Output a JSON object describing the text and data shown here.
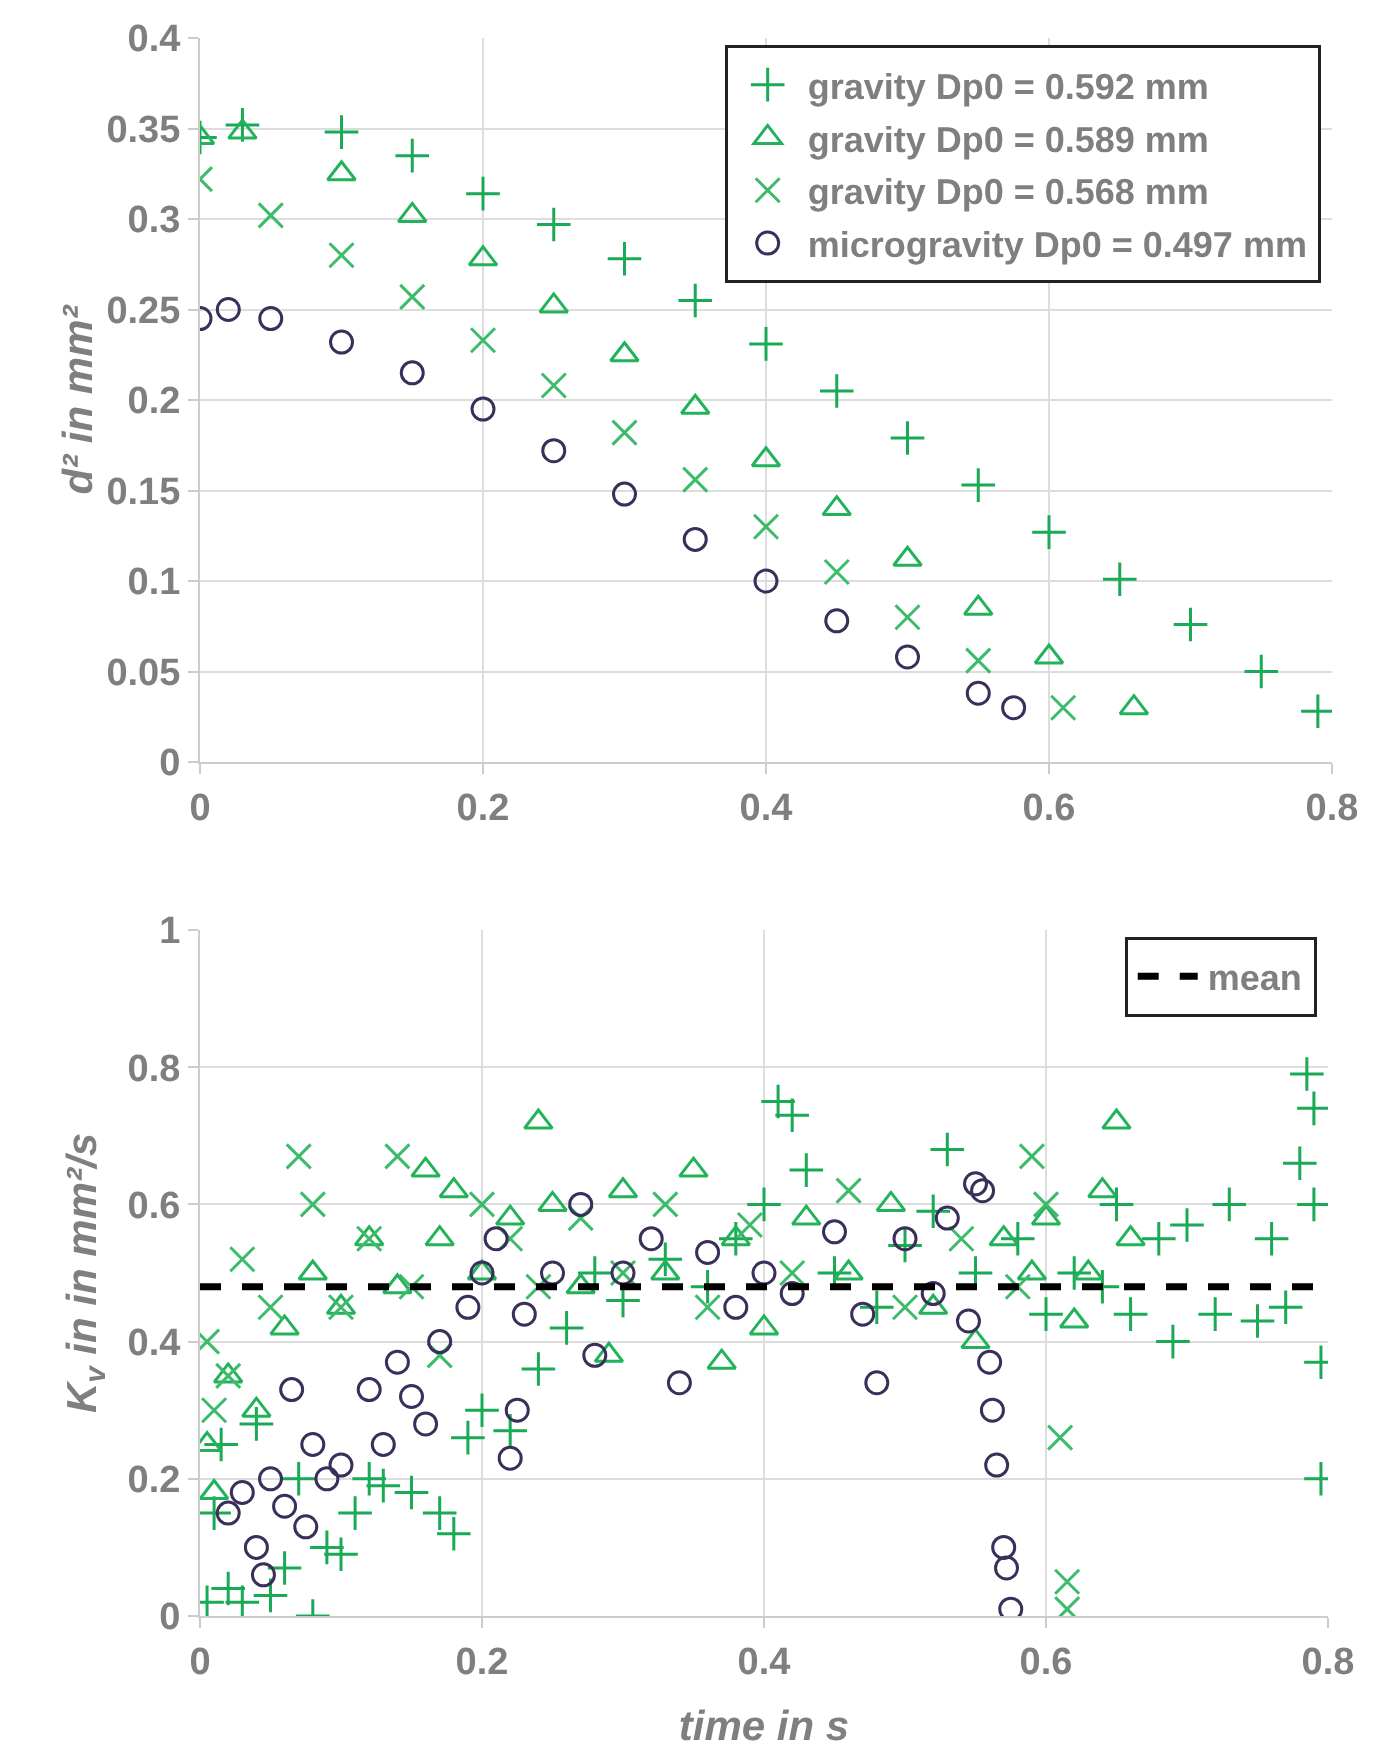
{
  "chart_data": [
    {
      "type": "scatter",
      "ylabel": "d² in mm²",
      "xlim": [
        0,
        0.8
      ],
      "ylim": [
        0,
        0.4
      ],
      "xticks": [
        0,
        0.2,
        0.4,
        0.6,
        0.8
      ],
      "yticks": [
        0,
        0.05,
        0.1,
        0.15,
        0.2,
        0.25,
        0.3,
        0.35,
        0.4
      ],
      "grid": true,
      "legend": "top right",
      "series": [
        {
          "name": "gravity Dp0 = 0.592 mm",
          "color": "#1aa955",
          "marker": "cross",
          "x": [
            0,
            0.03,
            0.1,
            0.15,
            0.2,
            0.25,
            0.3,
            0.35,
            0.4,
            0.45,
            0.5,
            0.55,
            0.6,
            0.65,
            0.7,
            0.75,
            0.79
          ],
          "values": [
            0.345,
            0.352,
            0.348,
            0.335,
            0.314,
            0.297,
            0.278,
            0.255,
            0.231,
            0.205,
            0.179,
            0.153,
            0.127,
            0.101,
            0.076,
            0.05,
            0.028
          ]
        },
        {
          "name": "gravity Dp0 = 0.589 mm",
          "color": "#22b35a",
          "marker": "triangle",
          "x": [
            0,
            0.03,
            0.1,
            0.15,
            0.2,
            0.25,
            0.3,
            0.35,
            0.4,
            0.45,
            0.5,
            0.55,
            0.6,
            0.66
          ],
          "values": [
            0.345,
            0.348,
            0.325,
            0.302,
            0.278,
            0.252,
            0.225,
            0.196,
            0.167,
            0.14,
            0.112,
            0.085,
            0.058,
            0.03
          ]
        },
        {
          "name": "gravity Dp0 = 0.568 mm",
          "color": "#3cbb6a",
          "marker": "x",
          "x": [
            0,
            0.05,
            0.1,
            0.15,
            0.2,
            0.25,
            0.3,
            0.35,
            0.4,
            0.45,
            0.5,
            0.55,
            0.61
          ],
          "values": [
            0.322,
            0.302,
            0.28,
            0.257,
            0.233,
            0.208,
            0.182,
            0.156,
            0.13,
            0.105,
            0.08,
            0.056,
            0.03
          ]
        },
        {
          "name": "microgravity Dp0 = 0.497 mm",
          "color": "#3a2f5b",
          "marker": "circle",
          "x": [
            0,
            0.02,
            0.05,
            0.1,
            0.15,
            0.2,
            0.25,
            0.3,
            0.35,
            0.4,
            0.45,
            0.5,
            0.55,
            0.575
          ],
          "values": [
            0.245,
            0.25,
            0.245,
            0.232,
            0.215,
            0.195,
            0.172,
            0.148,
            0.123,
            0.1,
            0.078,
            0.058,
            0.038,
            0.03
          ]
        }
      ]
    },
    {
      "type": "scatter",
      "xlabel": "time in s",
      "ylabel": "K$_{v}$ in in mm²/s",
      "xlim": [
        0,
        0.8
      ],
      "ylim": [
        0,
        1
      ],
      "xticks": [
        0,
        0.2,
        0.4,
        0.6,
        0.8
      ],
      "yticks": [
        0,
        0.2,
        0.4,
        0.6,
        0.8,
        1
      ],
      "grid": true,
      "legend": "top right",
      "ref_lines": [
        {
          "axis": "y",
          "value": 0.48,
          "label": "mean",
          "color": "#000000",
          "line_style": "dashed"
        }
      ],
      "series": [
        {
          "color": "#1aa955",
          "marker": "cross",
          "x": [
            0.005,
            0.01,
            0.015,
            0.02,
            0.03,
            0.04,
            0.05,
            0.06,
            0.07,
            0.08,
            0.09,
            0.1,
            0.11,
            0.12,
            0.13,
            0.15,
            0.17,
            0.18,
            0.19,
            0.2,
            0.22,
            0.24,
            0.26,
            0.28,
            0.3,
            0.33,
            0.36,
            0.38,
            0.4,
            0.41,
            0.42,
            0.43,
            0.45,
            0.48,
            0.5,
            0.52,
            0.53,
            0.55,
            0.58,
            0.6,
            0.62,
            0.64,
            0.65,
            0.66,
            0.68,
            0.69,
            0.7,
            0.72,
            0.73,
            0.75,
            0.76,
            0.77,
            0.78,
            0.785,
            0.79,
            0.79,
            0.795,
            0.795
          ],
          "values": [
            0.02,
            0.15,
            0.25,
            0.04,
            0.02,
            0.28,
            0.03,
            0.07,
            0.2,
            0.0,
            0.1,
            0.09,
            0.15,
            0.2,
            0.19,
            0.18,
            0.15,
            0.12,
            0.26,
            0.3,
            0.27,
            0.36,
            0.42,
            0.5,
            0.46,
            0.52,
            0.48,
            0.55,
            0.6,
            0.75,
            0.73,
            0.65,
            0.5,
            0.45,
            0.54,
            0.59,
            0.68,
            0.5,
            0.55,
            0.44,
            0.5,
            0.48,
            0.6,
            0.44,
            0.55,
            0.4,
            0.57,
            0.44,
            0.6,
            0.43,
            0.55,
            0.45,
            0.66,
            0.79,
            0.74,
            0.6,
            0.37,
            0.2
          ]
        },
        {
          "color": "#22b35a",
          "marker": "triangle",
          "x": [
            0.005,
            0.01,
            0.02,
            0.04,
            0.06,
            0.08,
            0.1,
            0.12,
            0.14,
            0.16,
            0.17,
            0.18,
            0.2,
            0.22,
            0.24,
            0.25,
            0.27,
            0.29,
            0.3,
            0.33,
            0.35,
            0.37,
            0.38,
            0.4,
            0.43,
            0.46,
            0.49,
            0.52,
            0.55,
            0.57,
            0.59,
            0.6,
            0.62,
            0.63,
            0.64,
            0.65,
            0.66
          ],
          "values": [
            0.25,
            0.18,
            0.35,
            0.3,
            0.42,
            0.5,
            0.45,
            0.55,
            0.48,
            0.65,
            0.55,
            0.62,
            0.5,
            0.58,
            0.72,
            0.6,
            0.48,
            0.38,
            0.62,
            0.5,
            0.65,
            0.37,
            0.55,
            0.42,
            0.58,
            0.5,
            0.6,
            0.45,
            0.4,
            0.55,
            0.5,
            0.58,
            0.43,
            0.5,
            0.62,
            0.72,
            0.55
          ]
        },
        {
          "color": "#3cbb6a",
          "marker": "x",
          "x": [
            0.005,
            0.01,
            0.02,
            0.03,
            0.05,
            0.07,
            0.08,
            0.1,
            0.12,
            0.14,
            0.15,
            0.17,
            0.2,
            0.22,
            0.24,
            0.27,
            0.3,
            0.33,
            0.36,
            0.39,
            0.42,
            0.46,
            0.5,
            0.54,
            0.58,
            0.59,
            0.6,
            0.61,
            0.615,
            0.615
          ],
          "values": [
            0.4,
            0.3,
            0.35,
            0.52,
            0.45,
            0.67,
            0.6,
            0.45,
            0.55,
            0.67,
            0.48,
            0.38,
            0.6,
            0.55,
            0.48,
            0.58,
            0.5,
            0.6,
            0.45,
            0.57,
            0.5,
            0.62,
            0.45,
            0.55,
            0.48,
            0.67,
            0.6,
            0.26,
            0.05,
            0.01
          ]
        },
        {
          "color": "#3a2f5b",
          "marker": "circle",
          "x": [
            0.02,
            0.03,
            0.04,
            0.045,
            0.05,
            0.06,
            0.065,
            0.075,
            0.08,
            0.09,
            0.1,
            0.12,
            0.13,
            0.14,
            0.15,
            0.16,
            0.17,
            0.19,
            0.2,
            0.21,
            0.22,
            0.225,
            0.23,
            0.25,
            0.27,
            0.28,
            0.3,
            0.32,
            0.34,
            0.36,
            0.38,
            0.4,
            0.42,
            0.45,
            0.47,
            0.48,
            0.5,
            0.52,
            0.53,
            0.545,
            0.55,
            0.555,
            0.56,
            0.562,
            0.565,
            0.57,
            0.572,
            0.575
          ],
          "values": [
            0.15,
            0.18,
            0.1,
            0.06,
            0.2,
            0.16,
            0.33,
            0.13,
            0.25,
            0.2,
            0.22,
            0.33,
            0.25,
            0.37,
            0.32,
            0.28,
            0.4,
            0.45,
            0.5,
            0.55,
            0.23,
            0.3,
            0.44,
            0.5,
            0.6,
            0.38,
            0.5,
            0.55,
            0.34,
            0.53,
            0.45,
            0.5,
            0.47,
            0.56,
            0.44,
            0.34,
            0.55,
            0.47,
            0.58,
            0.43,
            0.63,
            0.62,
            0.37,
            0.3,
            0.22,
            0.1,
            0.07,
            0.01
          ]
        }
      ]
    }
  ]
}
